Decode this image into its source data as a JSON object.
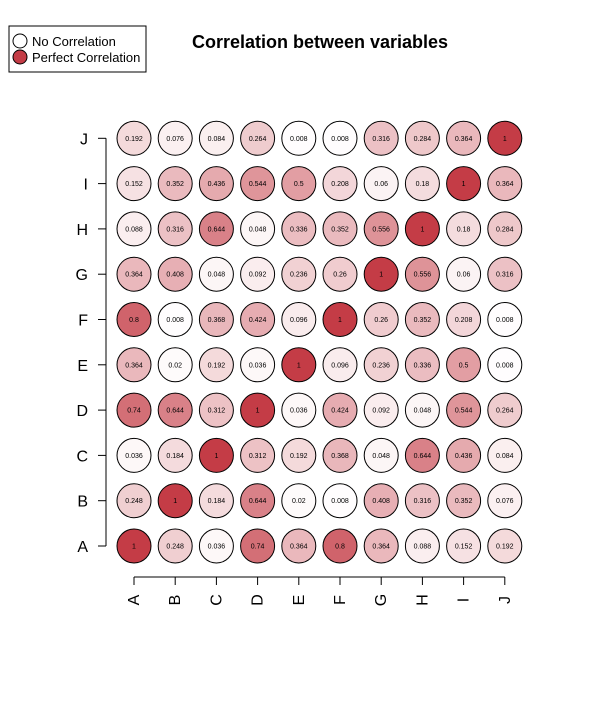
{
  "chart_data": {
    "type": "heatmap",
    "title": "Correlation between variables",
    "x_categories": [
      "A",
      "B",
      "C",
      "D",
      "E",
      "F",
      "G",
      "H",
      "I",
      "J"
    ],
    "y_categories": [
      "A",
      "B",
      "C",
      "D",
      "E",
      "F",
      "G",
      "H",
      "I",
      "J"
    ],
    "value_range": [
      0,
      1
    ],
    "grid": false,
    "legend_placement": "top-left",
    "legend": [
      {
        "label": "No Correlation",
        "value": 0
      },
      {
        "label": "Perfect Correlation",
        "value": 1
      }
    ],
    "colors": {
      "low": "#ffffff",
      "high": "#c43c46",
      "stroke": "#000000"
    },
    "values": [
      [
        "1",
        "0.248",
        "0.036",
        "0.74",
        "0.364",
        "0.8",
        "0.364",
        "0.088",
        "0.152",
        "0.192"
      ],
      [
        "0.248",
        "1",
        "0.184",
        "0.644",
        "0.02",
        "0.008",
        "0.408",
        "0.316",
        "0.352",
        "0.076"
      ],
      [
        "0.036",
        "0.184",
        "1",
        "0.312",
        "0.192",
        "0.368",
        "0.048",
        "0.644",
        "0.436",
        "0.084"
      ],
      [
        "0.74",
        "0.644",
        "0.312",
        "1",
        "0.036",
        "0.424",
        "0.092",
        "0.048",
        "0.544",
        "0.264"
      ],
      [
        "0.364",
        "0.02",
        "0.192",
        "0.036",
        "1",
        "0.096",
        "0.236",
        "0.336",
        "0.5",
        "0.008"
      ],
      [
        "0.8",
        "0.008",
        "0.368",
        "0.424",
        "0.096",
        "1",
        "0.26",
        "0.352",
        "0.208",
        "0.008"
      ],
      [
        "0.364",
        "0.408",
        "0.048",
        "0.092",
        "0.236",
        "0.26",
        "1",
        "0.556",
        "0.06",
        "0.316"
      ],
      [
        "0.088",
        "0.316",
        "0.644",
        "0.048",
        "0.336",
        "0.352",
        "0.556",
        "1",
        "0.18",
        "0.284"
      ],
      [
        "0.152",
        "0.352",
        "0.436",
        "0.544",
        "0.5",
        "0.208",
        "0.06",
        "0.18",
        "1",
        "0.364"
      ],
      [
        "0.192",
        "0.076",
        "0.084",
        "0.264",
        "0.008",
        "0.008",
        "0.316",
        "0.284",
        "0.364",
        "1"
      ]
    ]
  }
}
